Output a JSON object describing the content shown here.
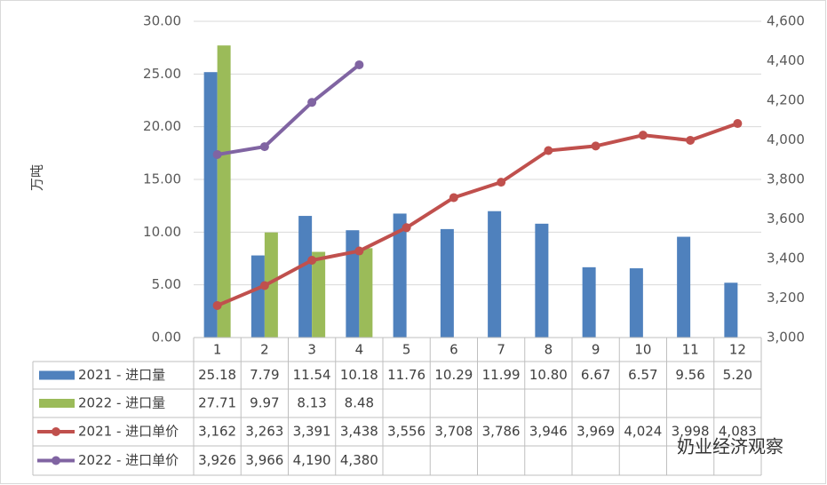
{
  "chart_data": {
    "type": "bar_line_table",
    "y_label": "万吨",
    "categories": [
      "1",
      "2",
      "3",
      "4",
      "5",
      "6",
      "7",
      "8",
      "9",
      "10",
      "11",
      "12"
    ],
    "ylim": [
      0,
      30
    ],
    "yticks": [
      {
        "value": 0,
        "label": "0.00"
      },
      {
        "value": 5,
        "label": "5.00"
      },
      {
        "value": 10,
        "label": "10.00"
      },
      {
        "value": 15,
        "label": "15.00"
      },
      {
        "value": 20,
        "label": "20.00"
      },
      {
        "value": 25,
        "label": "25.00"
      },
      {
        "value": 30,
        "label": "30.00"
      }
    ],
    "y2lim": [
      3000,
      4600
    ],
    "y2ticks": [
      {
        "value": 3000,
        "label": "3,000"
      },
      {
        "value": 3200,
        "label": "3,200"
      },
      {
        "value": 3400,
        "label": "3,400"
      },
      {
        "value": 3600,
        "label": "3,600"
      },
      {
        "value": 3800,
        "label": "3,800"
      },
      {
        "value": 4000,
        "label": "4,000"
      },
      {
        "value": 4200,
        "label": "4,200"
      },
      {
        "value": 4400,
        "label": "4,400"
      },
      {
        "value": 4600,
        "label": "4,600"
      }
    ],
    "grid": true,
    "series": [
      {
        "name": "2021 - 进口量",
        "type": "bar",
        "color": "#4f81bd",
        "values": [
          25.18,
          7.79,
          11.54,
          10.18,
          11.76,
          10.29,
          11.99,
          10.8,
          6.67,
          6.57,
          9.56,
          5.2
        ],
        "value_labels": [
          "25.18",
          "7.79",
          "11.54",
          "10.18",
          "11.76",
          "10.29",
          "11.99",
          "10.80",
          "6.67",
          "6.57",
          "9.56",
          "5.20"
        ]
      },
      {
        "name": "2022 - 进口量",
        "type": "bar",
        "color": "#9bbb59",
        "values": [
          27.71,
          9.97,
          8.13,
          8.48,
          null,
          null,
          null,
          null,
          null,
          null,
          null,
          null
        ],
        "value_labels": [
          "27.71",
          "9.97",
          "8.13",
          "8.48",
          null,
          null,
          null,
          null,
          null,
          null,
          null,
          null
        ]
      },
      {
        "name": "2021 - 进口单价",
        "type": "line",
        "axis": "y2",
        "color": "#c0504d",
        "values": [
          3162,
          3263,
          3391,
          3438,
          3556,
          3708,
          3786,
          3946,
          3969,
          4024,
          3998,
          4083
        ],
        "value_labels": [
          "3,162",
          "3,263",
          "3,391",
          "3,438",
          "3,556",
          "3,708",
          "3,786",
          "3,946",
          "3,969",
          "4,024",
          "3,998",
          "4,083"
        ]
      },
      {
        "name": "2022 - 进口单价",
        "type": "line",
        "axis": "y2",
        "color": "#8064a2",
        "values": [
          3926,
          3966,
          4190,
          4380,
          null,
          null,
          null,
          null,
          null,
          null,
          null,
          null
        ],
        "value_labels": [
          "3,926",
          "3,966",
          "4,190",
          "4,380",
          null,
          null,
          null,
          null,
          null,
          null,
          null,
          null
        ]
      }
    ],
    "watermark": "奶业经济观察"
  }
}
